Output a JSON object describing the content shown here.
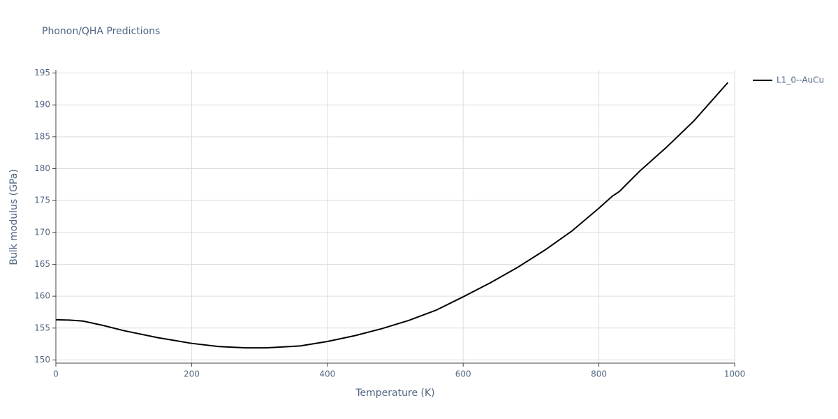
{
  "chart_data": {
    "type": "line",
    "title": "Phonon/QHA Predictions",
    "x_label": "Temperature (K)",
    "y_label": "Bulk modulus (GPa)",
    "x": [
      0,
      20,
      40,
      70,
      100,
      150,
      200,
      240,
      280,
      310,
      360,
      400,
      440,
      480,
      520,
      560,
      600,
      640,
      680,
      720,
      760,
      800,
      820,
      830,
      860,
      900,
      940,
      990
    ],
    "series": [
      {
        "name": "L1_0--AuCu",
        "color": "#000000",
        "values": [
          156.3,
          156.25,
          156.1,
          155.4,
          154.6,
          153.5,
          152.6,
          152.1,
          151.9,
          151.9,
          152.2,
          152.9,
          153.8,
          154.9,
          156.2,
          157.8,
          159.9,
          162.1,
          164.5,
          167.2,
          170.2,
          173.8,
          175.7,
          176.4,
          179.6,
          183.4,
          187.5,
          193.5
        ]
      }
    ],
    "xlim": [
      0,
      1000
    ],
    "xticks": [
      0,
      200,
      400,
      600,
      800,
      1000
    ],
    "ylim": [
      149.5,
      195.5
    ],
    "yticks": [
      150,
      155,
      160,
      165,
      170,
      175,
      180,
      185,
      190,
      195
    ],
    "grid": true,
    "legend": "right"
  }
}
